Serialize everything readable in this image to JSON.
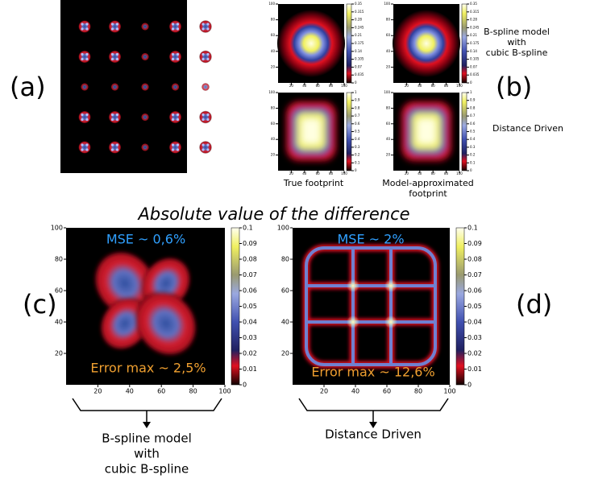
{
  "panel_labels": [
    "(a)",
    "(b)",
    "(c)",
    "(d)"
  ],
  "b": {
    "side_labels": {
      "bspline": [
        "B-spline model",
        "with",
        "cubic B-spline"
      ],
      "distance": [
        "Distance Driven"
      ]
    },
    "column_labels": {
      "true": [
        "True footprint"
      ],
      "model": [
        "Model-approximated",
        "footprint"
      ]
    },
    "colorbar_ticks_top": [
      0.35,
      0.315,
      0.28,
      0.245,
      0.21,
      0.175,
      0.14,
      0.105,
      0.07,
      0.035,
      0
    ],
    "colorbar_ticks_bottom": [
      1,
      0.9,
      0.8,
      0.7,
      0.6,
      0.5,
      0.4,
      0.3,
      0.2,
      0.1,
      0
    ],
    "axis_ticks": [
      20,
      40,
      60,
      80,
      100
    ]
  },
  "title": "Absolute value of the difference",
  "c": {
    "mse": "MSE ~ 0,6%",
    "error_max": "Error max ~ 2,5%",
    "caption": [
      "B-spline model",
      "with",
      "cubic B-spline"
    ]
  },
  "d": {
    "mse": "MSE ~ 2%",
    "error_max": "Error max ~ 12,6%",
    "caption": [
      "Distance Driven"
    ]
  },
  "colorbar_ticks": [
    0.1,
    0.09,
    0.08,
    0.07,
    0.06,
    0.05,
    0.04,
    0.03,
    0.02,
    0.01,
    0
  ],
  "axis_ticks": [
    20,
    40,
    60,
    80,
    100
  ]
}
